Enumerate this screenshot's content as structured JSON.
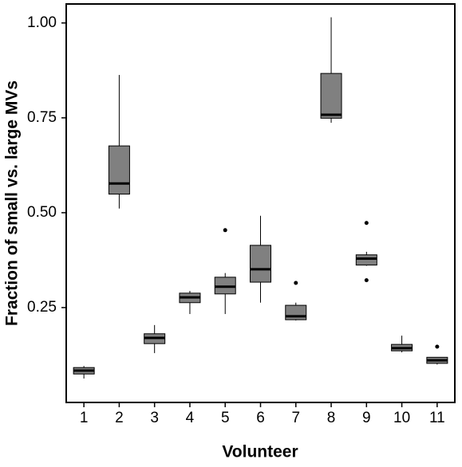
{
  "chart_data": {
    "type": "box",
    "x_label": "Volunteer",
    "y_label": "Fraction of small vs. large MVs",
    "categories": [
      "1",
      "2",
      "3",
      "4",
      "5",
      "6",
      "7",
      "8",
      "9",
      "10",
      "11"
    ],
    "low": [
      0.063,
      0.511,
      0.13,
      0.233,
      0.233,
      0.263,
      0.216,
      0.737,
      0.36,
      0.132,
      0.1
    ],
    "q1": [
      0.075,
      0.549,
      0.155,
      0.263,
      0.286,
      0.317,
      0.218,
      0.749,
      0.362,
      0.136,
      0.103
    ],
    "median": [
      0.084,
      0.577,
      0.17,
      0.277,
      0.305,
      0.351,
      0.227,
      0.758,
      0.379,
      0.143,
      0.111
    ],
    "q3": [
      0.092,
      0.676,
      0.181,
      0.288,
      0.33,
      0.414,
      0.256,
      0.867,
      0.389,
      0.153,
      0.119
    ],
    "high": [
      0.096,
      0.863,
      0.204,
      0.294,
      0.341,
      0.492,
      0.263,
      1.015,
      0.397,
      0.176,
      0.119
    ],
    "outliers": [
      [],
      [],
      [],
      [],
      [
        0.454
      ],
      [],
      [
        0.315
      ],
      [],
      [
        0.473,
        0.322
      ],
      [],
      [
        0.147
      ]
    ],
    "color": "#808080",
    "ylim": [
      0,
      1.05
    ],
    "yticks": [
      0.25,
      {
        "value": 0.5,
        "label": "0.50"
      },
      0.75,
      {
        "value": 1,
        "label": "1.00"
      }
    ]
  }
}
